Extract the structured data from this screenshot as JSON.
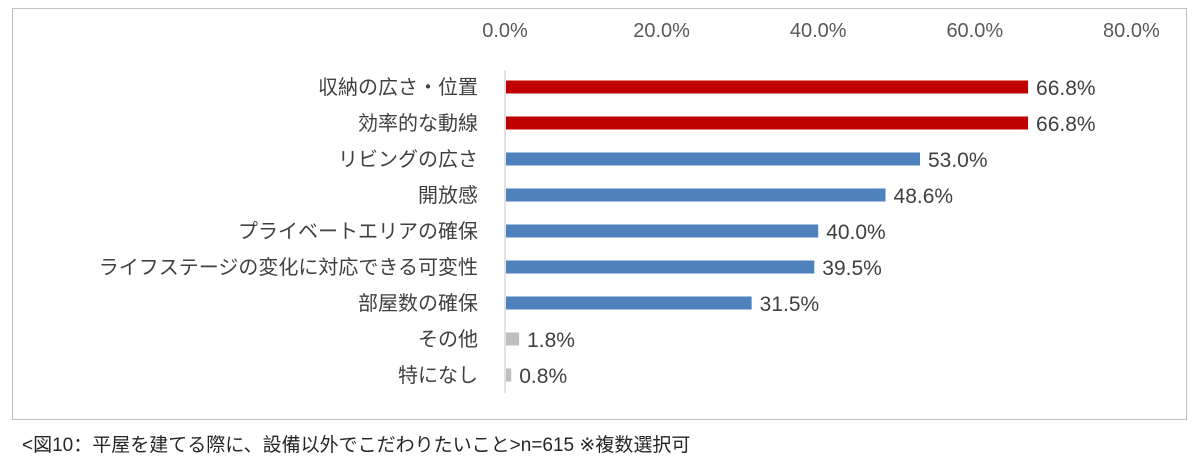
{
  "chart_data": {
    "type": "bar",
    "orientation": "horizontal",
    "title": "",
    "xlabel": "",
    "ylabel": "",
    "xlim": [
      0,
      80
    ],
    "x_ticks": [
      "0.0%",
      "20.0%",
      "40.0%",
      "60.0%",
      "80.0%"
    ],
    "x_tick_values": [
      0,
      20,
      40,
      60,
      80
    ],
    "axis_position": "top",
    "grid": false,
    "categories": [
      "収納の広さ・位置",
      "効率的な動線",
      "リビングの広さ",
      "開放感",
      "プライベートエリアの確保",
      "ライフステージの変化に対応できる可変性",
      "部屋数の確保",
      "その他",
      "特になし"
    ],
    "values": [
      66.8,
      66.8,
      53.0,
      48.6,
      40.0,
      39.5,
      31.5,
      1.8,
      0.8
    ],
    "value_labels": [
      "66.8%",
      "66.8%",
      "53.0%",
      "48.6%",
      "40.0%",
      "39.5%",
      "31.5%",
      "1.8%",
      "0.8%"
    ],
    "bar_colors": [
      "#C00000",
      "#C00000",
      "#4F81BD",
      "#4F81BD",
      "#4F81BD",
      "#4F81BD",
      "#4F81BD",
      "#BFBFBF",
      "#BFBFBF"
    ]
  },
  "caption": "<図10：平屋を建てる際に、設備以外でこだわりたいこと>n=615 ※複数選択可"
}
